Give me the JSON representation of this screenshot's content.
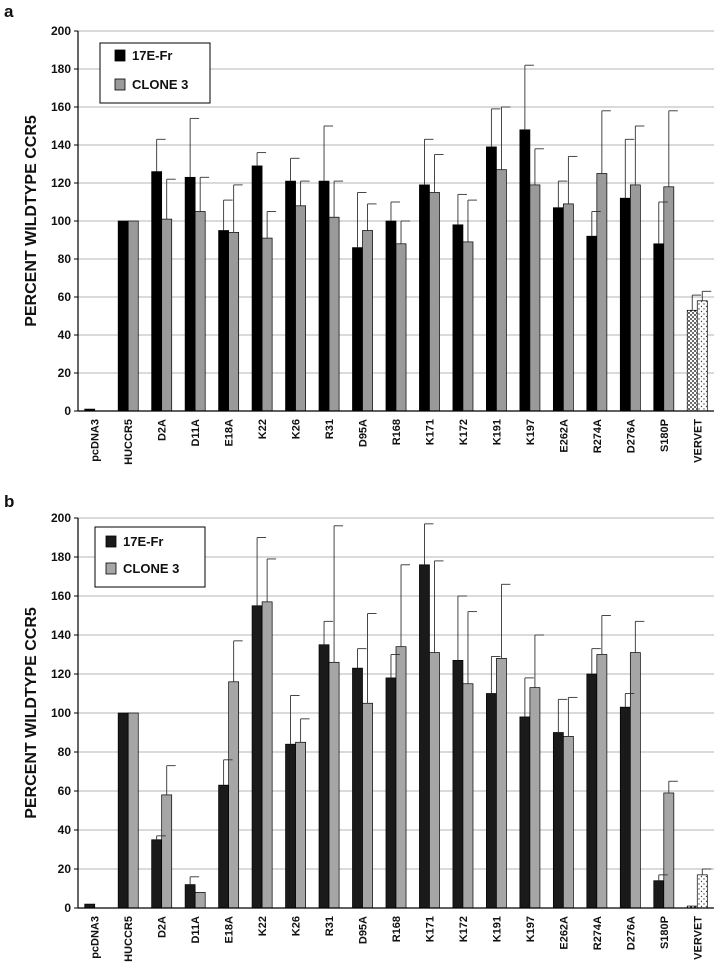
{
  "figure": {
    "panels": [
      "a",
      "b"
    ]
  },
  "chart_data": [
    {
      "panel_label": "a",
      "type": "bar",
      "ylabel": "PERCENT WILDTYPE CCR5",
      "xlabel": "",
      "ylim": [
        0,
        200
      ],
      "yticks": [
        0,
        20,
        40,
        60,
        80,
        100,
        120,
        140,
        160,
        180,
        200
      ],
      "grid": true,
      "legend_position": "top-left",
      "categories": [
        "pcDNA3",
        "HUCCR5",
        "D2A",
        "D11A",
        "E18A",
        "K22",
        "K26",
        "R31",
        "D95A",
        "R168",
        "K171",
        "K172",
        "K191",
        "K197",
        "E262A",
        "R274A",
        "D276A",
        "S180P",
        "VERVET"
      ],
      "series": [
        {
          "name": "17E-Fr",
          "color": "#000000",
          "values": [
            1,
            100,
            126,
            123,
            95,
            129,
            121,
            121,
            86,
            100,
            119,
            98,
            139,
            148,
            107,
            92,
            112,
            88,
            53
          ],
          "errors": [
            0,
            0,
            17,
            31,
            16,
            7,
            12,
            29,
            29,
            10,
            24,
            16,
            20,
            34,
            14,
            13,
            31,
            22,
            8
          ]
        },
        {
          "name": "CLONE 3",
          "color": "#9a9a9a",
          "values": [
            0,
            100,
            101,
            105,
            94,
            91,
            108,
            102,
            95,
            88,
            115,
            89,
            127,
            119,
            109,
            125,
            119,
            118,
            58
          ],
          "errors": [
            0,
            0,
            21,
            18,
            25,
            14,
            13,
            19,
            14,
            12,
            20,
            22,
            33,
            19,
            25,
            33,
            31,
            40,
            5
          ]
        }
      ]
    },
    {
      "panel_label": "b",
      "type": "bar",
      "ylabel": "PERCENT WILDTYPE CCR5",
      "xlabel": "",
      "ylim": [
        0,
        200
      ],
      "yticks": [
        0,
        20,
        40,
        60,
        80,
        100,
        120,
        140,
        160,
        180,
        200
      ],
      "grid": true,
      "legend_position": "top-left",
      "categories": [
        "pcDNA3",
        "HUCCR5",
        "D2A",
        "D11A",
        "E18A",
        "K22",
        "K26",
        "R31",
        "D95A",
        "R168",
        "K171",
        "K172",
        "K191",
        "K197",
        "E262A",
        "R274A",
        "D276A",
        "S180P",
        "VERVET"
      ],
      "series": [
        {
          "name": "17E-Fr",
          "color": "#1a1a1a",
          "values": [
            2,
            100,
            35,
            12,
            63,
            155,
            84,
            135,
            123,
            118,
            176,
            127,
            110,
            98,
            90,
            120,
            103,
            14,
            1
          ],
          "errors": [
            0,
            0,
            2,
            4,
            13,
            35,
            25,
            12,
            10,
            12,
            21,
            33,
            19,
            20,
            17,
            13,
            7,
            3,
            0
          ]
        },
        {
          "name": "CLONE 3",
          "color": "#a6a6a6",
          "values": [
            0,
            100,
            58,
            8,
            116,
            157,
            85,
            126,
            105,
            134,
            131,
            115,
            128,
            113,
            88,
            130,
            131,
            59,
            17
          ],
          "errors": [
            0,
            0,
            15,
            0,
            21,
            22,
            12,
            70,
            46,
            42,
            47,
            37,
            38,
            27,
            20,
            20,
            16,
            6,
            3
          ]
        }
      ]
    }
  ]
}
